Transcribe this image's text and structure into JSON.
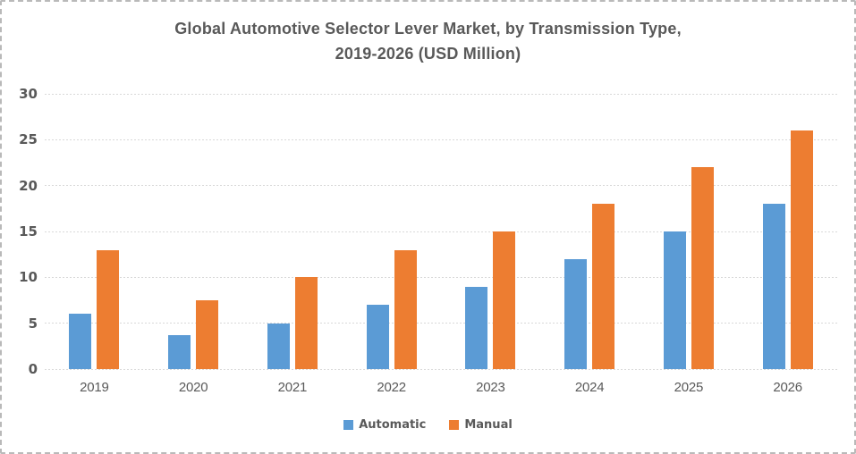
{
  "chart_data": {
    "type": "bar",
    "title_line1": "Global Automotive Selector Lever Market, by Transmission Type,",
    "title_line2": "2019-2026 (USD Million)",
    "categories": [
      "2019",
      "2020",
      "2021",
      "2022",
      "2023",
      "2024",
      "2025",
      "2026"
    ],
    "series": [
      {
        "name": "Automatic",
        "color": "#5B9BD5",
        "values": [
          6,
          3.7,
          5,
          7,
          9,
          12,
          15,
          18
        ]
      },
      {
        "name": "Manual",
        "color": "#ED7D31",
        "values": [
          13,
          7.5,
          10,
          13,
          15,
          18,
          22,
          26
        ]
      }
    ],
    "xlabel": "",
    "ylabel": "",
    "ylim": [
      0,
      30
    ],
    "yticks": [
      0,
      5,
      10,
      15,
      20,
      25,
      30
    ],
    "grid": true,
    "gridline_style": "dashed",
    "legend_position": "bottom"
  },
  "colors": {
    "automatic": "#5B9BD5",
    "manual": "#ED7D31",
    "grid": "#D9D9D9",
    "text": "#595959",
    "border": "#B9B9B9",
    "background": "#FFFFFF"
  }
}
